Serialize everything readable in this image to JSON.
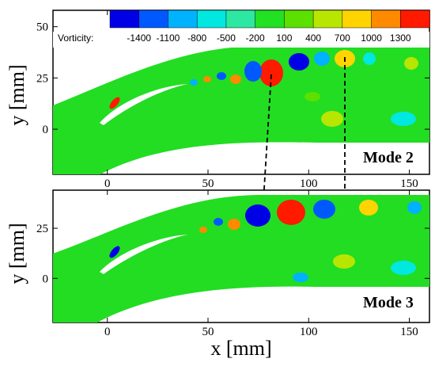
{
  "chart_data": [
    {
      "type": "heatmap",
      "panel": "Mode 2",
      "title": "Mode 2",
      "xlabel": "",
      "ylabel": "y [mm]",
      "xlim": [
        -27,
        160
      ],
      "ylim": [
        -22,
        58
      ],
      "x_ticks": [
        0,
        50,
        100,
        150
      ],
      "y_ticks": [
        0,
        25,
        50
      ],
      "grid": false,
      "marker_lines_x": [
        83,
        120
      ]
    },
    {
      "type": "heatmap",
      "panel": "Mode 3",
      "title": "Mode 3",
      "xlabel": "x [mm]",
      "ylabel": "y [mm]",
      "xlim": [
        -27,
        160
      ],
      "ylim": [
        -22,
        44
      ],
      "x_ticks": [
        0,
        50,
        100,
        150
      ],
      "y_ticks": [
        0,
        25
      ],
      "grid": false,
      "marker_lines_x": [
        83,
        120
      ]
    }
  ],
  "colorbar": {
    "label": "Vorticity:",
    "ticks": [
      "-1400",
      "-1100",
      "-800",
      "-500",
      "-200",
      "100",
      "400",
      "700",
      "1000",
      "1300"
    ],
    "colors": [
      "#0000e6",
      "#0059ff",
      "#00b2ff",
      "#00e8e0",
      "#2de8a2",
      "#22e022",
      "#5ce000",
      "#b8e600",
      "#ffd400",
      "#ff8a00",
      "#ff1a00"
    ]
  },
  "colors": {
    "field": "#22dd22",
    "blade": "#ffffff"
  }
}
